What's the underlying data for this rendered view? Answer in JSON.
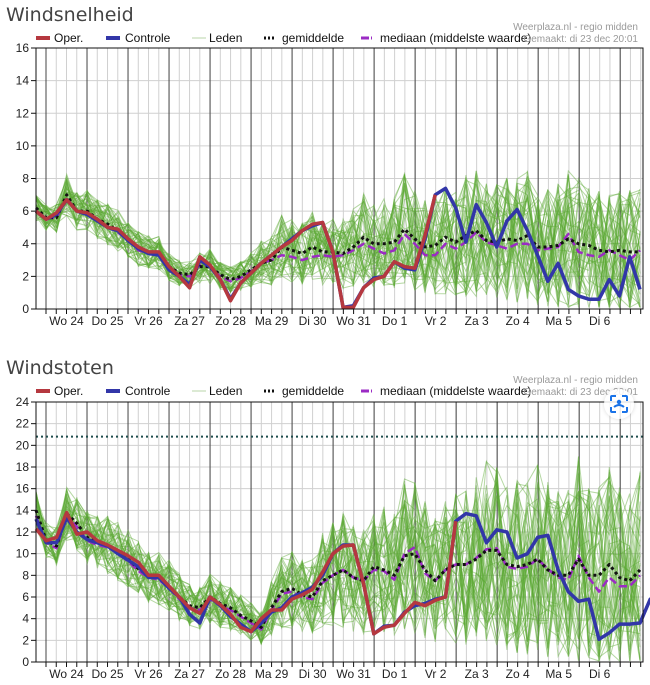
{
  "colors": {
    "oper": "#b5383f",
    "controle": "#3236a8",
    "leden": "#5aa832",
    "gemiddelde": "#111111",
    "mediaan": "#9b2bc4",
    "threshold": "#1e4d4d",
    "grid_major": "#444444",
    "grid_minor": "#d0d0d0"
  },
  "legend": {
    "oper": "Oper.",
    "controle": "Controle",
    "leden": "Leden",
    "gemiddelde": "gemiddelde",
    "mediaan": "mediaan (middelste waarde)"
  },
  "credit": {
    "line1": "Weerplaza.nl - regio midden",
    "line2": "Gemaakt: di 23 dec 20:01"
  },
  "lens_button": {
    "icon": "lens-scan-icon"
  },
  "chart_data": [
    {
      "type": "line",
      "title": "Windsnelheid",
      "xlabel": "",
      "ylabel": "",
      "ylim": [
        0,
        16
      ],
      "yticks": [
        0,
        2,
        4,
        6,
        8,
        10,
        12,
        14,
        16
      ],
      "x_tick_labels": [
        "Wo 24",
        "Do 25",
        "Vr 26",
        "Za 27",
        "Zo 28",
        "Ma 29",
        "Di 30",
        "Wo 31",
        "Do 1",
        "Vr 2",
        "Za 3",
        "Zo 4",
        "Ma 5",
        "Di 6"
      ],
      "x_step_hours": 6,
      "grid": true,
      "legend_position": "top",
      "series": [
        {
          "name": "Oper.",
          "values": [
            6.0,
            5.5,
            5.9,
            6.7,
            6.0,
            5.9,
            5.5,
            5.0,
            4.9,
            4.3,
            3.8,
            3.5,
            3.5,
            2.6,
            2.0,
            1.3,
            3.2,
            2.7,
            1.8,
            0.5,
            1.6,
            2.2,
            2.8,
            3.3,
            3.8,
            4.2,
            4.8,
            5.2,
            5.3,
            3.5,
            0.1,
            0.1,
            1.3,
            1.8,
            2.0,
            2.9,
            2.6,
            2.5,
            4.5,
            7.0
          ]
        },
        {
          "name": "Controle",
          "values": [
            6.0,
            5.5,
            5.8,
            6.7,
            6.0,
            5.8,
            5.4,
            5.0,
            4.8,
            4.2,
            3.7,
            3.4,
            3.3,
            2.4,
            2.0,
            1.5,
            3.0,
            2.6,
            1.8,
            0.6,
            1.6,
            2.2,
            2.8,
            3.3,
            3.8,
            4.3,
            4.8,
            5.1,
            5.3,
            3.5,
            0.1,
            0.2,
            1.3,
            1.9,
            2.0,
            2.9,
            2.5,
            2.4,
            4.3,
            7.0,
            7.4,
            6.2,
            4.1,
            6.4,
            5.3,
            3.8,
            5.4,
            6.1,
            4.8,
            3.3,
            1.7,
            2.8,
            1.2,
            0.8,
            0.6,
            0.6,
            1.8,
            0.8,
            3.2,
            1.2
          ]
        },
        {
          "name": "gemiddelde",
          "values": [
            6.2,
            5.6,
            5.6,
            7.0,
            6.0,
            6.0,
            5.5,
            5.2,
            4.8,
            4.3,
            3.7,
            3.5,
            3.4,
            2.6,
            2.2,
            2.1,
            2.6,
            2.6,
            2.1,
            1.8,
            2.0,
            2.4,
            2.8,
            3.0,
            3.8,
            3.6,
            3.4,
            3.8,
            3.5,
            3.5,
            3.4,
            3.8,
            4.4,
            4.0,
            4.0,
            4.1,
            4.9,
            4.3,
            3.8,
            3.9,
            4.4,
            4.1,
            4.5,
            4.8,
            4.2,
            4.1,
            4.3,
            4.2,
            4.5,
            3.8,
            3.8,
            3.9,
            4.3,
            4.0,
            3.9,
            3.6,
            3.5,
            3.6,
            3.5,
            3.5
          ]
        },
        {
          "name": "mediaan (middelste waarde)",
          "values": [
            6.0,
            5.6,
            5.6,
            6.8,
            6.0,
            5.9,
            5.4,
            5.0,
            4.7,
            4.2,
            3.6,
            3.4,
            3.3,
            2.5,
            2.1,
            2.0,
            2.7,
            2.6,
            2.0,
            1.7,
            1.9,
            2.3,
            2.8,
            3.0,
            3.3,
            3.2,
            3.0,
            3.2,
            3.3,
            3.2,
            3.3,
            3.6,
            4.0,
            3.7,
            3.4,
            3.6,
            4.6,
            4.0,
            3.3,
            3.3,
            4.0,
            3.7,
            4.1,
            4.7,
            4.1,
            3.9,
            3.7,
            4.0,
            4.0,
            3.6,
            3.7,
            3.8,
            4.6,
            3.5,
            3.3,
            3.2,
            3.6,
            3.3,
            3.0,
            3.6
          ]
        }
      ],
      "leden_range": {
        "description": "~50 ensemble members (thin green lines) spread roughly 0-14",
        "max_value": 14
      }
    },
    {
      "type": "line",
      "title": "Windstoten",
      "xlabel": "",
      "ylabel": "",
      "ylim": [
        0,
        24
      ],
      "yticks": [
        0,
        2,
        4,
        6,
        8,
        10,
        12,
        14,
        16,
        18,
        20,
        22,
        24
      ],
      "x_tick_labels": [
        "Wo 24",
        "Do 25",
        "Vr 26",
        "Za 27",
        "Zo 28",
        "Ma 29",
        "Di 30",
        "Wo 31",
        "Do 1",
        "Vr 2",
        "Za 3",
        "Zo 4",
        "Ma 5",
        "Di 6"
      ],
      "x_step_hours": 6,
      "grid": true,
      "legend_position": "top",
      "threshold_line": 20.8,
      "series": [
        {
          "name": "Oper.",
          "values": [
            12.3,
            11.2,
            11.5,
            13.8,
            11.8,
            12.0,
            11.2,
            10.8,
            10.3,
            9.8,
            9.2,
            8.0,
            8.0,
            7.0,
            6.0,
            5.0,
            4.5,
            6.0,
            5.3,
            4.4,
            3.2,
            2.8,
            4.0,
            4.8,
            4.8,
            5.8,
            6.2,
            6.7,
            8.3,
            10.0,
            10.7,
            10.8,
            7.2,
            2.6,
            3.2,
            3.4,
            4.5,
            5.5,
            5.2,
            5.7,
            6.0,
            13.0
          ]
        },
        {
          "name": "Controle",
          "values": [
            13.2,
            11.0,
            11.0,
            13.3,
            12.0,
            11.3,
            11.0,
            10.7,
            10.0,
            9.4,
            8.8,
            7.8,
            7.8,
            6.8,
            6.0,
            4.4,
            3.6,
            6.0,
            5.2,
            4.2,
            3.5,
            2.8,
            3.6,
            4.6,
            5.0,
            6.0,
            6.4,
            6.9,
            8.0,
            10.0,
            10.8,
            10.8,
            7.2,
            2.6,
            3.3,
            3.4,
            4.6,
            5.2,
            5.4,
            5.8,
            6.0,
            13.0,
            13.7,
            13.5,
            11.0,
            12.2,
            12.0,
            9.6,
            10.0,
            11.5,
            11.7,
            8.5,
            6.5,
            5.6,
            5.8,
            2.1,
            2.7,
            3.5,
            3.5,
            3.6,
            5.8,
            6.1
          ]
        },
        {
          "name": "gemiddelde",
          "values": [
            14.0,
            11.2,
            10.7,
            13.7,
            12.8,
            11.5,
            11.0,
            10.8,
            10.2,
            9.5,
            8.6,
            8.0,
            7.8,
            7.0,
            6.0,
            5.2,
            5.0,
            6.0,
            5.4,
            5.0,
            4.3,
            3.8,
            3.2,
            5.0,
            6.5,
            6.8,
            6.2,
            6.0,
            7.5,
            8.0,
            8.5,
            7.8,
            7.5,
            8.8,
            8.5,
            8.0,
            9.8,
            10.0,
            8.5,
            7.5,
            8.5,
            9.0,
            9.0,
            9.5,
            10.3,
            10.3,
            9.0,
            8.8,
            9.0,
            9.5,
            8.5,
            8.0,
            8.0,
            9.5,
            8.0,
            8.0,
            9.0,
            7.8,
            7.5,
            8.5
          ]
        },
        {
          "name": "mediaan (middelste waarde)",
          "values": [
            13.5,
            11.0,
            10.5,
            13.5,
            12.5,
            11.2,
            10.8,
            10.6,
            10.0,
            9.3,
            8.4,
            7.8,
            7.6,
            6.8,
            5.8,
            5.0,
            4.8,
            5.8,
            5.2,
            4.8,
            4.2,
            3.6,
            3.0,
            4.8,
            6.3,
            6.5,
            6.0,
            5.8,
            7.3,
            8.0,
            8.5,
            7.8,
            7.5,
            8.5,
            8.4,
            7.6,
            10.0,
            10.6,
            8.2,
            7.5,
            8.5,
            9.0,
            9.0,
            9.6,
            10.4,
            10.5,
            8.8,
            8.6,
            8.8,
            9.5,
            8.6,
            7.8,
            7.6,
            9.8,
            7.8,
            6.5,
            7.8,
            7.0,
            7.0,
            8.0
          ]
        }
      ],
      "leden_range": {
        "description": "~50 ensemble members (thin green lines) spread roughly 2-20",
        "max_value": 20.5
      }
    }
  ]
}
